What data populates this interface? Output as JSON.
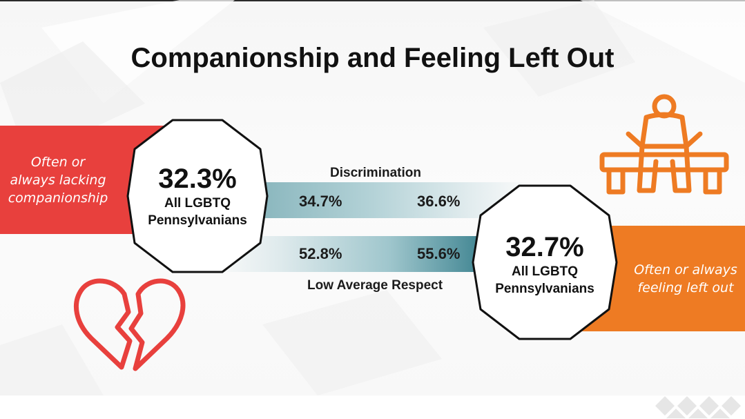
{
  "slide": {
    "title": "Companionship and Feeling Left Out"
  },
  "left_stat": {
    "value": "32.3%",
    "group_line1": "All LGBTQ",
    "group_line2": "Pennsylvanians",
    "label_lines": [
      "Often or",
      "always lacking",
      "companionship"
    ],
    "band_color": "#e8403d",
    "icon": "broken-heart-icon"
  },
  "right_stat": {
    "value": "32.7%",
    "group_line1": "All LGBTQ",
    "group_line2": "Pennsylvanians",
    "label_lines": [
      "Often or always",
      "feeling left out"
    ],
    "band_color": "#ee7b23",
    "icon": "person-on-bench-icon"
  },
  "comparisons": {
    "top": {
      "label": "Discrimination",
      "left_value": "34.7%",
      "right_value": "36.6%"
    },
    "bottom": {
      "label": "Low Average Respect",
      "left_value": "52.8%",
      "right_value": "55.6%"
    },
    "accent_color": "#1e6e7d"
  }
}
